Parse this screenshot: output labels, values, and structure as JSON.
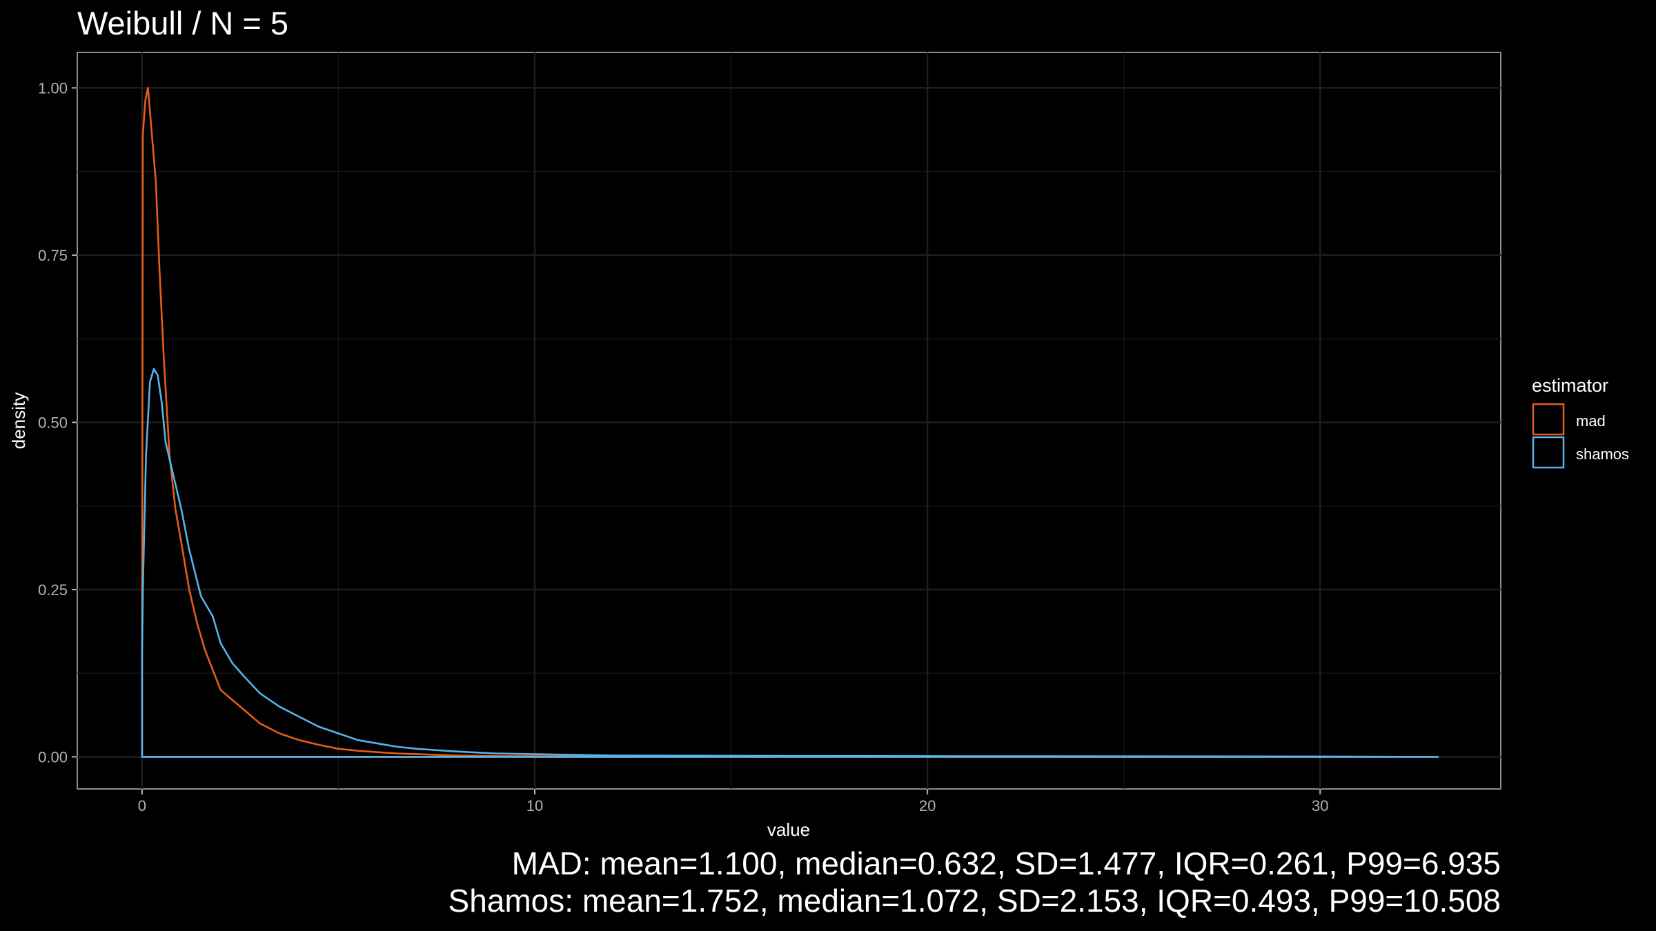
{
  "chart_data": {
    "type": "line",
    "title": "Weibull / N = 5",
    "xlabel": "value",
    "ylabel": "density",
    "xlim": [
      -1.65,
      34.6
    ],
    "ylim": [
      -0.048,
      1.053
    ],
    "x_ticks": [
      0,
      10,
      20,
      30
    ],
    "x_tick_labels": [
      "0",
      "10",
      "20",
      "30"
    ],
    "y_ticks": [
      0,
      0.25,
      0.5,
      0.75,
      1
    ],
    "y_tick_labels": [
      "0.00",
      "0.25",
      "0.50",
      "0.75",
      "1.00"
    ],
    "grid": true,
    "legend": {
      "title": "estimator",
      "position": "right"
    },
    "series": [
      {
        "name": "mad",
        "color": "#E65C1A",
        "x": [
          0,
          0.02,
          0.08,
          0.15,
          0.25,
          0.35,
          0.45,
          0.55,
          0.7,
          0.85,
          1.0,
          1.2,
          1.4,
          1.6,
          1.8,
          2.0,
          2.3,
          2.6,
          3.0,
          3.5,
          4.0,
          4.5,
          5.0,
          5.5,
          6.0,
          6.5,
          7.0,
          7.5,
          8.0,
          9.0,
          10.0,
          12.0,
          15.0,
          20.0,
          25.0,
          30.0,
          33.0
        ],
        "y": [
          0.15,
          0.93,
          0.98,
          1.0,
          0.93,
          0.86,
          0.72,
          0.6,
          0.45,
          0.37,
          0.32,
          0.25,
          0.2,
          0.16,
          0.13,
          0.1,
          0.085,
          0.07,
          0.05,
          0.035,
          0.025,
          0.018,
          0.012,
          0.009,
          0.007,
          0.005,
          0.004,
          0.003,
          0.002,
          0.001,
          0.001,
          0.0005,
          0.0003,
          0.0002,
          0.0001,
          0.0001,
          0
        ],
        "baseline": 0
      },
      {
        "name": "shamos",
        "color": "#56B4E9",
        "x": [
          0,
          0.02,
          0.1,
          0.2,
          0.3,
          0.4,
          0.5,
          0.6,
          0.8,
          1.0,
          1.2,
          1.5,
          1.8,
          2.0,
          2.3,
          2.6,
          3.0,
          3.5,
          4.0,
          4.5,
          5.0,
          5.5,
          6.0,
          6.5,
          7.0,
          7.5,
          8.0,
          9.0,
          10.0,
          11.0,
          12.0,
          15.0,
          20.0,
          25.0,
          30.0,
          33.0
        ],
        "y": [
          0.15,
          0.25,
          0.45,
          0.56,
          0.58,
          0.57,
          0.53,
          0.47,
          0.42,
          0.37,
          0.31,
          0.24,
          0.21,
          0.17,
          0.14,
          0.12,
          0.095,
          0.075,
          0.06,
          0.045,
          0.035,
          0.025,
          0.02,
          0.015,
          0.012,
          0.01,
          0.008,
          0.005,
          0.004,
          0.003,
          0.002,
          0.0015,
          0.001,
          0.0008,
          0.0005,
          0
        ],
        "baseline": 0
      }
    ],
    "caption_lines": [
      "MAD: mean=1.100, median=0.632, SD=1.477, IQR=0.261, P99=6.935",
      "Shamos: mean=1.752, median=1.072, SD=2.153, IQR=0.493, P99=10.508"
    ]
  }
}
